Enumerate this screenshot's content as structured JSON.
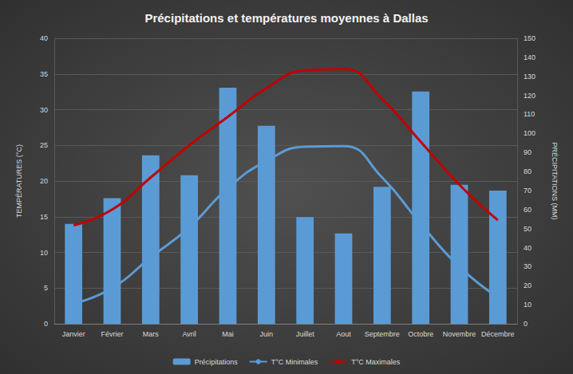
{
  "chart_data": {
    "type": "bar",
    "title": "Précipitations et températures moyennes à Dallas",
    "ylabel": "TEMPÉRATURES (°C)",
    "y2label": "PRÉCIPITATIONS (MM)",
    "categories": [
      "Janvier",
      "Février",
      "Mars",
      "Avril",
      "Mai",
      "Juin",
      "Juillet",
      "Aout",
      "Septembre",
      "Octobre",
      "Novembre",
      "Décembre"
    ],
    "series": [
      {
        "name": "Précipitations",
        "type": "bar",
        "axis": "y2",
        "color": "#5b9bd5",
        "values": [
          52.5,
          66,
          88.5,
          78,
          124,
          104,
          56,
          47.5,
          72,
          122,
          73,
          70
        ]
      },
      {
        "name": "T°C Minimales",
        "type": "line",
        "color": "#5b9bd5",
        "marker": "none",
        "line_style": "solid",
        "values": [
          2.8,
          5,
          9.3,
          13.5,
          19,
          22.8,
          24.8,
          24.9,
          20.5,
          14,
          8,
          3.7
        ]
      },
      {
        "name": "T°C Maximales",
        "type": "line",
        "color": "#c00000",
        "marker": "none",
        "line_style": "solid",
        "values": [
          13.8,
          16,
          20.5,
          25,
          29,
          33,
          35.5,
          35.7,
          31.5,
          25.5,
          19.5,
          14.5
        ]
      }
    ],
    "ylim": [
      0,
      40
    ],
    "yticks": [
      0,
      5,
      10,
      15,
      20,
      25,
      30,
      35,
      40
    ],
    "y2lim": [
      0,
      150
    ],
    "y2ticks": [
      0,
      10,
      20,
      30,
      40,
      50,
      60,
      70,
      80,
      90,
      100,
      110,
      120,
      130,
      140,
      150
    ],
    "grid": true,
    "legend": "bottom"
  }
}
